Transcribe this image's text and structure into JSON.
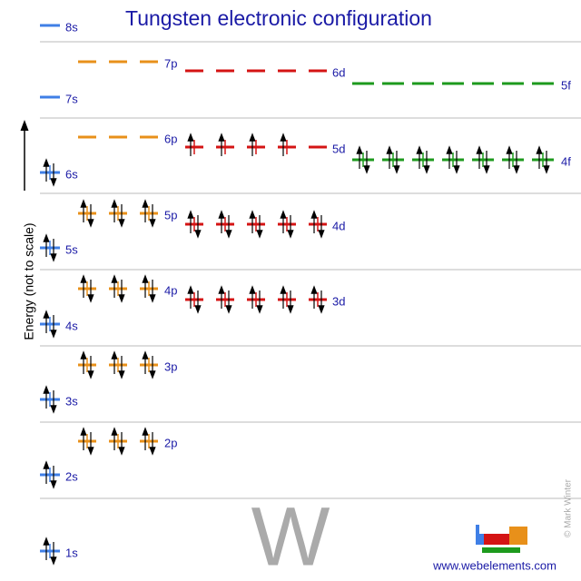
{
  "title": "Tungsten electronic configuration",
  "axis_label": "Energy (not to scale)",
  "symbol": "W",
  "website": "www.webelements.com",
  "copyright": "© Mark Winter",
  "colors": {
    "s": "#3f7fe6",
    "p": "#e8901a",
    "d": "#d41414",
    "f": "#1d9a1d"
  },
  "orbitals": [
    {
      "label": "1s",
      "electrons": 2
    },
    {
      "label": "2s",
      "electrons": 2
    },
    {
      "label": "2p",
      "electrons": 6
    },
    {
      "label": "3s",
      "electrons": 2
    },
    {
      "label": "3p",
      "electrons": 6
    },
    {
      "label": "4s",
      "electrons": 2
    },
    {
      "label": "3d",
      "electrons": 10
    },
    {
      "label": "4p",
      "electrons": 6
    },
    {
      "label": "5s",
      "electrons": 2
    },
    {
      "label": "4d",
      "electrons": 10
    },
    {
      "label": "5p",
      "electrons": 6
    },
    {
      "label": "6s",
      "electrons": 2
    },
    {
      "label": "4f",
      "electrons": 14
    },
    {
      "label": "5d",
      "electrons": 4
    },
    {
      "label": "6p",
      "electrons": 0
    },
    {
      "label": "7s",
      "electrons": 0
    },
    {
      "label": "5f",
      "electrons": 0
    },
    {
      "label": "6d",
      "electrons": 0
    },
    {
      "label": "7p",
      "electrons": 0
    },
    {
      "label": "8s",
      "electrons": 0
    }
  ]
}
